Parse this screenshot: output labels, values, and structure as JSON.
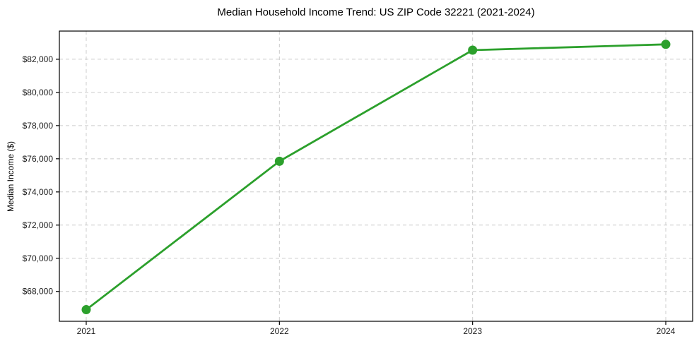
{
  "chart_data": {
    "type": "line",
    "title": "Median Household Income Trend: US ZIP Code 32221 (2021-2024)",
    "ylabel": "Median Income ($)",
    "xlabel": "",
    "x": [
      2021,
      2022,
      2023,
      2024
    ],
    "xtick_labels": [
      "2021",
      "2022",
      "2023",
      "2024"
    ],
    "values": [
      66900,
      75850,
      82550,
      82900
    ],
    "yticks": [
      68000,
      70000,
      72000,
      74000,
      76000,
      78000,
      80000,
      82000
    ],
    "ytick_labels": [
      "$68,000",
      "$70,000",
      "$72,000",
      "$74,000",
      "$76,000",
      "$78,000",
      "$80,000",
      "$82,000"
    ],
    "ylim": [
      66200,
      83700
    ],
    "grid": "dashed-both-axes",
    "legend": "none",
    "colors": {
      "line": "#2ca02c",
      "marker": "#2ca02c",
      "grid": "#cccccc",
      "spine": "#000000",
      "tick_text": "#1a1a1a",
      "title_text": "#000000",
      "background": "#ffffff"
    }
  }
}
